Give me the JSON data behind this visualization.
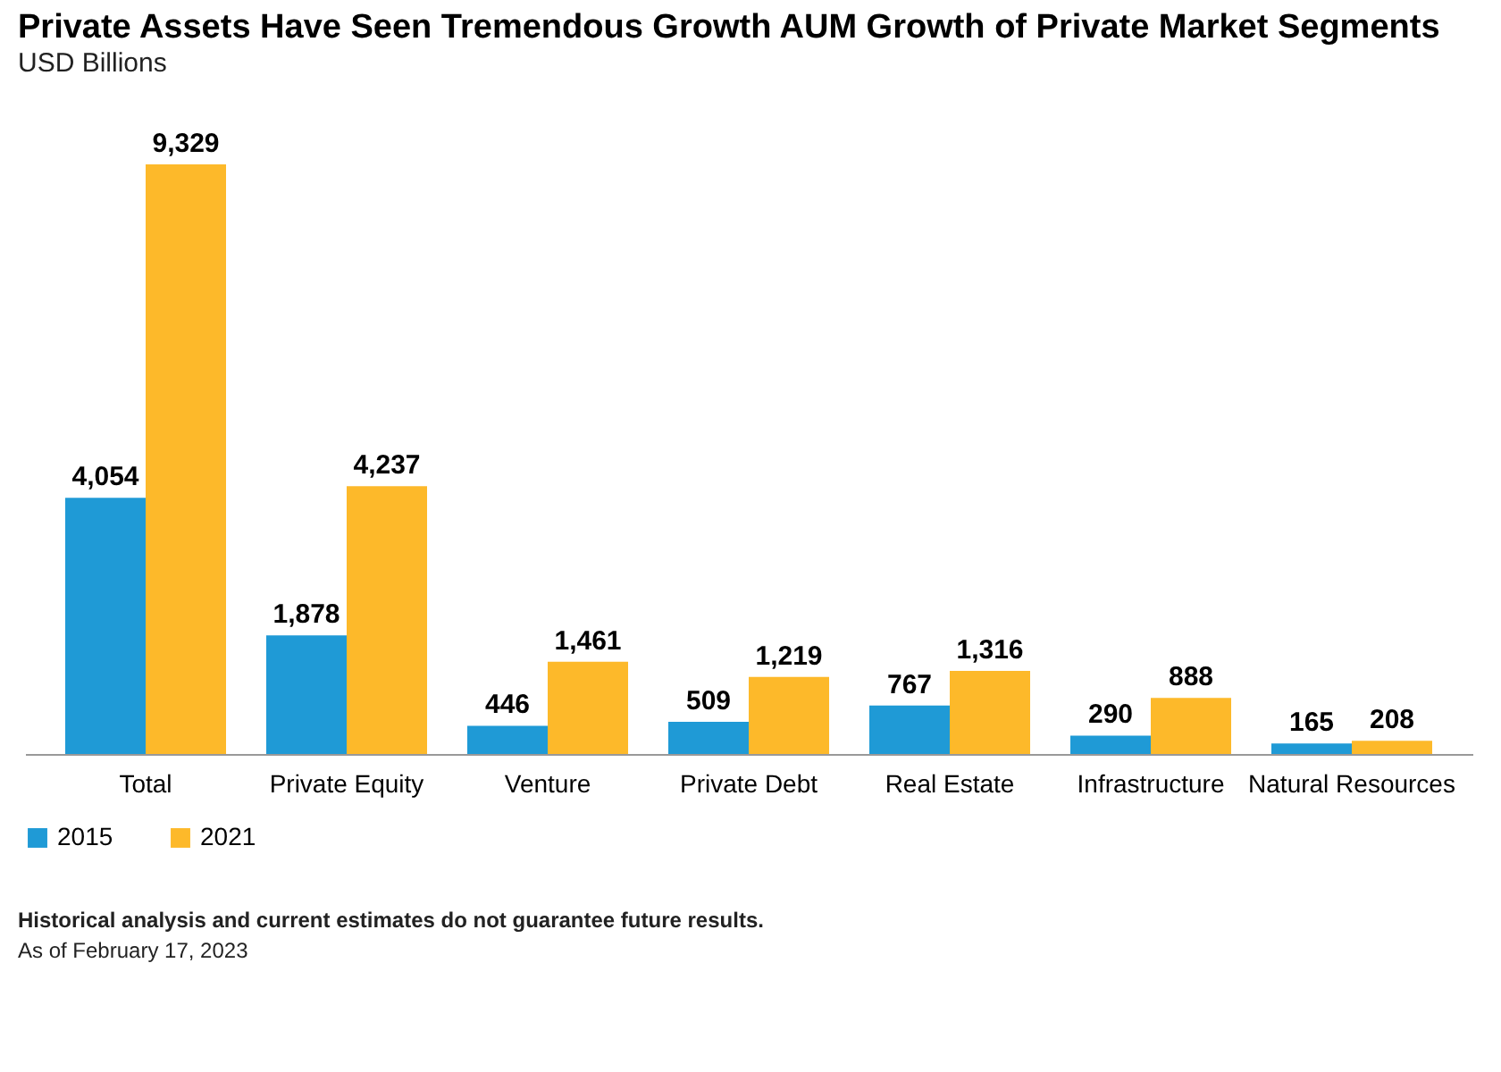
{
  "chart_data": {
    "type": "bar",
    "title": "Private Assets Have Seen Tremendous Growth AUM Growth of Private Market Segments",
    "subtitle": "USD Billions",
    "categories": [
      "Total",
      "Private Equity",
      "Venture",
      "Private Debt",
      "Real Estate",
      "Infrastructure",
      "Natural Resources"
    ],
    "series": [
      {
        "name": "2015",
        "color": "#1f9ad6",
        "values": [
          4054,
          1878,
          446,
          509,
          767,
          290,
          165
        ],
        "value_labels": [
          "4,054",
          "1,878",
          "446",
          "509",
          "767",
          "290",
          "165"
        ]
      },
      {
        "name": "2021",
        "color": "#fdb92a",
        "values": [
          9329,
          4237,
          1461,
          1219,
          1316,
          888,
          208
        ],
        "value_labels": [
          "9,329",
          "4,237",
          "1,461",
          "1,219",
          "1,316",
          "888",
          "208"
        ]
      }
    ],
    "legend": "bottom",
    "grid": false,
    "annotations": [
      "Historical analysis and current estimates do not guarantee future results.",
      "As of February 17, 2023"
    ]
  }
}
